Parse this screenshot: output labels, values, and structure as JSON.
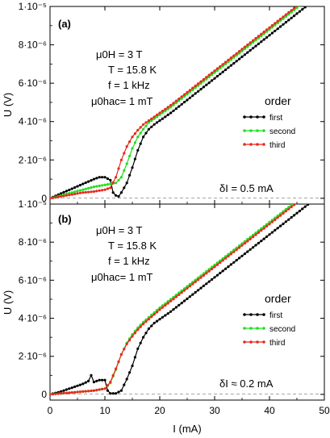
{
  "chart_data": [
    {
      "type": "line",
      "panel_label": "(a)",
      "annotation_lines": [
        "μ0H = 3 T",
        "T = 15.8 K",
        "f = 1 kHz",
        "μ0hac= 1 mT"
      ],
      "note": "δI = 0.5 mA",
      "ylabel": "U (V)",
      "xlim": [
        0,
        50
      ],
      "ylim": [
        -0.3,
        10
      ],
      "y_unit_label": "1e-6",
      "yticks": [
        0,
        2,
        4,
        6,
        8,
        10
      ],
      "ytick_labels": [
        "0",
        "2·10⁻⁶",
        "4·10⁻⁶",
        "6·10⁻⁶",
        "8·10⁻⁶",
        "1·10⁻⁵"
      ],
      "legend_title": "order",
      "series": [
        {
          "name": "first",
          "color": "#000000",
          "x": [
            0,
            2,
            4,
            6,
            8,
            9,
            10,
            11,
            11.5,
            12,
            12.5,
            13,
            14,
            15,
            16,
            17,
            18,
            19,
            20,
            21,
            22,
            24,
            26,
            28,
            30,
            32,
            34,
            36,
            38,
            40,
            42,
            44,
            46,
            48,
            49
          ],
          "y": [
            0,
            0.25,
            0.5,
            0.75,
            1.0,
            1.1,
            1.1,
            0.95,
            0.3,
            0.15,
            0.1,
            0.3,
            0.8,
            1.6,
            2.5,
            3.2,
            3.6,
            3.85,
            4.05,
            4.25,
            4.45,
            4.9,
            5.35,
            5.8,
            6.25,
            6.7,
            7.15,
            7.6,
            8.05,
            8.5,
            8.95,
            9.4,
            9.85,
            10.3,
            10.5
          ]
        },
        {
          "name": "second",
          "color": "#1ee01e",
          "x": [
            0,
            2,
            4,
            6,
            8,
            9,
            10,
            11,
            12,
            13,
            14,
            15,
            16,
            17,
            18,
            19,
            20,
            22,
            24,
            26,
            28,
            30,
            32,
            34,
            36,
            38,
            40,
            42,
            44,
            46,
            48,
            49
          ],
          "y": [
            0,
            0.15,
            0.3,
            0.45,
            0.6,
            0.65,
            0.7,
            0.75,
            0.8,
            1.1,
            1.8,
            2.6,
            3.2,
            3.6,
            3.95,
            4.15,
            4.35,
            4.75,
            5.2,
            5.65,
            6.1,
            6.55,
            7.0,
            7.45,
            7.9,
            8.35,
            8.8,
            9.25,
            9.7,
            10.15,
            10.6,
            10.8
          ]
        },
        {
          "name": "third",
          "color": "#e8291c",
          "x": [
            0,
            2,
            4,
            6,
            8,
            9,
            10,
            11,
            12,
            13,
            14,
            15,
            16,
            17,
            18,
            19,
            20,
            22,
            24,
            26,
            28,
            30,
            32,
            34,
            36,
            38,
            40,
            42,
            44,
            46,
            48,
            49
          ],
          "y": [
            0,
            0.1,
            0.2,
            0.3,
            0.35,
            0.4,
            0.45,
            0.55,
            1.1,
            2.0,
            2.7,
            3.2,
            3.55,
            3.85,
            4.05,
            4.25,
            4.45,
            4.85,
            5.3,
            5.75,
            6.2,
            6.65,
            7.1,
            7.55,
            8.0,
            8.45,
            8.9,
            9.35,
            9.8,
            10.25,
            10.7,
            10.9
          ]
        }
      ]
    },
    {
      "type": "line",
      "panel_label": "(b)",
      "annotation_lines": [
        "μ0H = 3 T",
        "T = 15.8 K",
        "f = 1 kHz",
        "μ0hac= 1 mT"
      ],
      "note": "δI ≈ 0.2 mA",
      "ylabel": "U (V)",
      "xlabel": "I (mA)",
      "xlim": [
        0,
        50
      ],
      "ylim": [
        -0.3,
        10
      ],
      "xticks": [
        0,
        10,
        20,
        30,
        40,
        50
      ],
      "yticks": [
        0,
        2,
        4,
        6,
        8,
        10
      ],
      "ytick_labels": [
        "0",
        "2·10⁻⁶",
        "4·10⁻⁶",
        "6·10⁻⁶",
        "8·10⁻⁶",
        "1·10⁻⁵"
      ],
      "legend_title": "order",
      "series": [
        {
          "name": "first",
          "color": "#000000",
          "x": [
            0,
            2,
            4,
            6,
            7,
            7.5,
            8,
            9,
            10,
            10.5,
            11,
            12,
            13,
            14,
            15,
            16,
            17,
            18,
            19,
            20,
            22,
            24,
            26,
            28,
            30,
            32,
            34,
            36,
            38,
            40,
            42,
            44,
            46,
            48,
            49
          ],
          "y": [
            0,
            0.15,
            0.35,
            0.55,
            0.7,
            1.0,
            0.65,
            0.75,
            0.75,
            0.2,
            0.05,
            0.05,
            0.2,
            0.8,
            1.5,
            2.4,
            3.0,
            3.45,
            3.75,
            3.95,
            4.35,
            4.8,
            5.25,
            5.7,
            6.15,
            6.6,
            7.05,
            7.5,
            7.95,
            8.4,
            8.85,
            9.3,
            9.75,
            10.2,
            10.4
          ]
        },
        {
          "name": "second",
          "color": "#1ee01e",
          "x": [
            0,
            2,
            4,
            6,
            8,
            9,
            10,
            11,
            12,
            13,
            14,
            15,
            16,
            17,
            18,
            19,
            20,
            22,
            24,
            26,
            28,
            30,
            32,
            34,
            36,
            38,
            40,
            42,
            44,
            46,
            48,
            49
          ],
          "y": [
            0,
            0.05,
            0.1,
            0.15,
            0.2,
            0.25,
            0.3,
            0.6,
            1.3,
            2.1,
            2.7,
            3.15,
            3.5,
            3.8,
            4.05,
            4.3,
            4.55,
            5.0,
            5.45,
            5.9,
            6.35,
            6.8,
            7.25,
            7.7,
            8.15,
            8.6,
            9.05,
            9.5,
            9.95,
            10.4,
            10.85,
            11.0
          ]
        },
        {
          "name": "third",
          "color": "#e8291c",
          "x": [
            0,
            2,
            4,
            6,
            8,
            9,
            10,
            11,
            12,
            13,
            14,
            15,
            16,
            17,
            18,
            19,
            20,
            22,
            24,
            26,
            28,
            30,
            32,
            34,
            36,
            38,
            40,
            42,
            44,
            46,
            48,
            49
          ],
          "y": [
            0,
            0.05,
            0.1,
            0.15,
            0.2,
            0.25,
            0.3,
            0.65,
            1.35,
            2.1,
            2.65,
            3.05,
            3.4,
            3.7,
            3.95,
            4.2,
            4.45,
            4.9,
            5.35,
            5.8,
            6.25,
            6.7,
            7.15,
            7.6,
            8.05,
            8.5,
            8.95,
            9.4,
            9.85,
            10.3,
            10.75,
            10.9
          ]
        }
      ]
    }
  ]
}
